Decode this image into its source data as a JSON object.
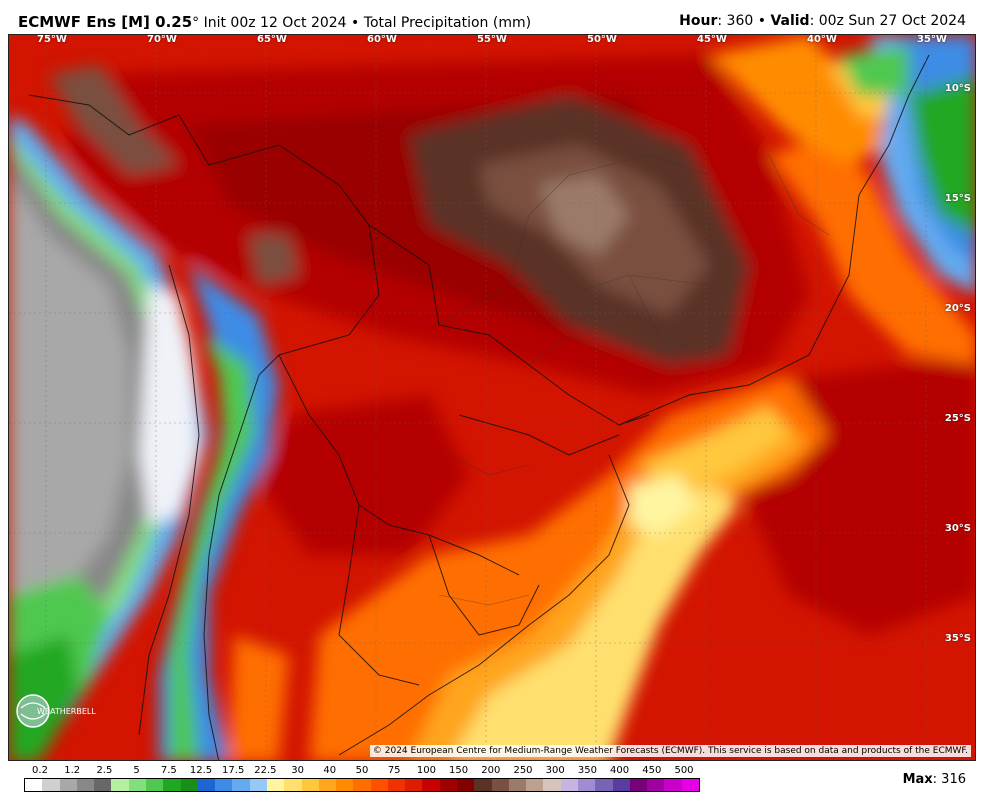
{
  "header": {
    "model": "ECMWF Ens [M] 0.25",
    "degree": "°",
    "init": "Init 00z 12 Oct 2024",
    "separator": "•",
    "product": "Total Precipitation (mm)",
    "hour_label": "Hour",
    "hour_value": ": 360",
    "valid_label": "Valid",
    "valid_value": ": 00z Sun 27 Oct 2024"
  },
  "map": {
    "longitudes": [
      "75°W",
      "70°W",
      "65°W",
      "60°W",
      "55°W",
      "50°W",
      "45°W",
      "40°W",
      "35°W"
    ],
    "latitudes": [
      "10°S",
      "15°S",
      "20°S",
      "25°S",
      "30°S",
      "35°S"
    ],
    "copyright": "© 2024 European Centre for Medium-Range Weather Forecasts (ECMWF). This service is based on data and products of the ECMWF.",
    "logo_text": "WEATHERBELL"
  },
  "legend": {
    "labels": [
      "0.2",
      "1.2",
      "2.5",
      "5",
      "7.5",
      "12.5",
      "17.5",
      "22.5",
      "30",
      "40",
      "50",
      "75",
      "100",
      "150",
      "200",
      "250",
      "300",
      "350",
      "400",
      "450",
      "500"
    ],
    "colors": [
      "#ffffff",
      "#d0d0d0",
      "#a8a8a8",
      "#888888",
      "#686868",
      "#b4f0a0",
      "#82e07a",
      "#50c850",
      "#20a820",
      "#188f18",
      "#1e64d2",
      "#3c8ce6",
      "#64aaf0",
      "#96c8f5",
      "#fff5a0",
      "#ffe06e",
      "#ffc83c",
      "#ffa51e",
      "#ff8c00",
      "#ff6e00",
      "#ff5000",
      "#f03200",
      "#dc1e00",
      "#c80000",
      "#a00000",
      "#820000",
      "#5a3228",
      "#7a5040",
      "#9c7a6a",
      "#bca090",
      "#d8c4bc",
      "#c8b4e0",
      "#a08cd2",
      "#7864b4",
      "#5a3ca0",
      "#780078",
      "#a000a0",
      "#c800c8",
      "#e600e6"
    ]
  },
  "max": {
    "label": "Max",
    "value": ": 316"
  }
}
